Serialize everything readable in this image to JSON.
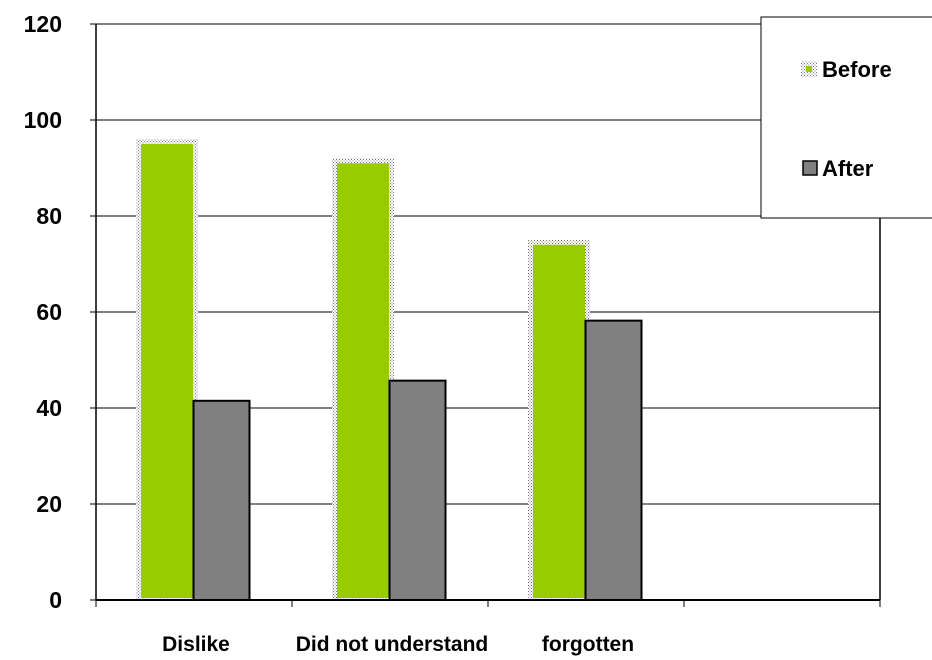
{
  "chart_data": {
    "type": "bar",
    "categories": [
      "Dislike",
      "Did not understand",
      "forgotten"
    ],
    "series": [
      {
        "name": "Before",
        "values": [
          95,
          91,
          74
        ],
        "color": "#99cc00"
      },
      {
        "name": "After",
        "values": [
          41.5,
          45.7,
          58.2
        ],
        "color": "#808080"
      }
    ],
    "ylim": [
      0,
      120
    ],
    "yticks": [
      0,
      20,
      40,
      60,
      80,
      100,
      120
    ],
    "grid": true,
    "legend_position": "top-right"
  }
}
